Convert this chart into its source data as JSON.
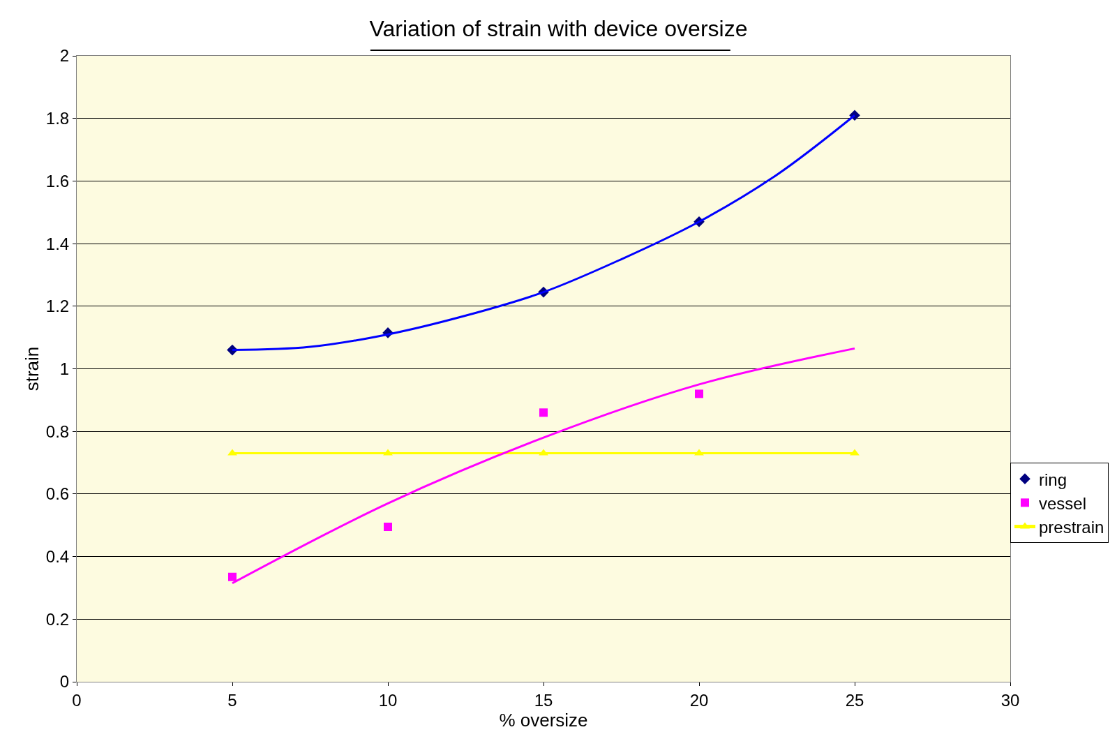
{
  "chart_data": {
    "type": "scatter",
    "title": "Variation of strain with device oversize",
    "xlabel": "% oversize",
    "ylabel": "strain",
    "xlim": [
      0,
      30
    ],
    "xticks": [
      0,
      5,
      10,
      15,
      20,
      25,
      30
    ],
    "ylim": [
      0,
      2
    ],
    "yticks": [
      0,
      0.2,
      0.4,
      0.6,
      0.8,
      1,
      1.2,
      1.4,
      1.6,
      1.8,
      2
    ],
    "grid": "y",
    "legend": "right",
    "series": [
      {
        "name": "ring",
        "color": "#000080",
        "marker": "diamond",
        "x": [
          5,
          10,
          15,
          20,
          25
        ],
        "values": [
          1.06,
          1.115,
          1.245,
          1.47,
          1.81
        ]
      },
      {
        "name": "vessel",
        "color": "#ff00ff",
        "marker": "square",
        "x": [
          5,
          10,
          15,
          20
        ],
        "values": [
          0.335,
          0.495,
          0.86,
          0.92
        ]
      },
      {
        "name": "prestrain",
        "type": "line",
        "color": "#ffff00",
        "marker": "triangle",
        "x": [
          5,
          10,
          15,
          20,
          25
        ],
        "values": [
          0.73,
          0.73,
          0.73,
          0.73,
          0.73
        ]
      },
      {
        "type": "line",
        "color": "#0000ff",
        "marker": "none",
        "x": [
          5,
          7.5,
          10,
          12.5,
          15,
          17.5,
          20,
          22.5,
          25
        ],
        "values": [
          1.06,
          1.07,
          1.11,
          1.17,
          1.245,
          1.35,
          1.47,
          1.62,
          1.81
        ]
      },
      {
        "type": "line",
        "color": "#ff00ff",
        "marker": "none",
        "x": [
          5,
          10,
          15,
          20,
          25
        ],
        "values": [
          0.315,
          0.57,
          0.78,
          0.95,
          1.065
        ]
      }
    ]
  }
}
